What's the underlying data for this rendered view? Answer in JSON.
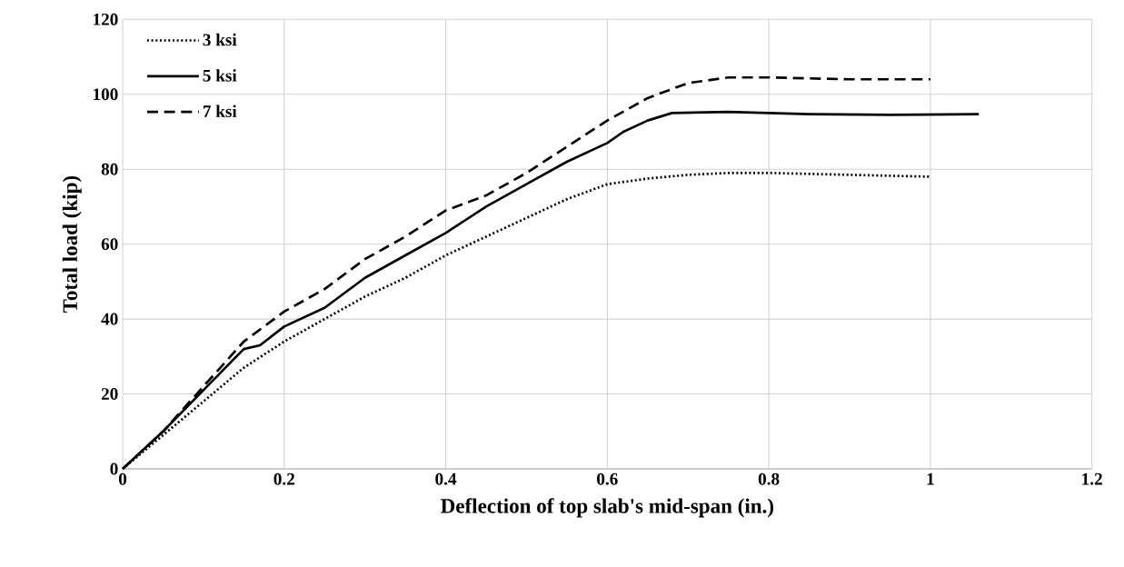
{
  "chart_data": {
    "type": "line",
    "xlabel": "Deflection of top slab's mid-span  (in.)",
    "ylabel": "Total load (kip)",
    "xlim": [
      0,
      1.2
    ],
    "ylim": [
      0,
      120
    ],
    "xticks": [
      0,
      0.2,
      0.4,
      0.6,
      0.8,
      1,
      1.2
    ],
    "yticks": [
      0,
      20,
      40,
      60,
      80,
      100,
      120
    ],
    "grid": true,
    "legend": "top left",
    "marker": "none",
    "series": [
      {
        "name": "3 ksi",
        "color": "#000000",
        "line_style": "dotted",
        "x": [
          0,
          0.05,
          0.1,
          0.15,
          0.2,
          0.25,
          0.3,
          0.35,
          0.4,
          0.45,
          0.5,
          0.55,
          0.6,
          0.65,
          0.7,
          0.75,
          0.8,
          0.9,
          1.0
        ],
        "values": [
          0,
          9,
          18,
          27,
          34,
          40,
          46,
          51,
          57,
          62,
          67,
          72,
          76,
          77.5,
          78.5,
          79,
          79,
          78.5,
          78
        ]
      },
      {
        "name": "5 ksi",
        "color": "#000000",
        "line_style": "solid",
        "x": [
          0,
          0.05,
          0.1,
          0.15,
          0.17,
          0.2,
          0.25,
          0.3,
          0.35,
          0.4,
          0.45,
          0.5,
          0.55,
          0.6,
          0.62,
          0.65,
          0.68,
          0.75,
          0.85,
          0.95,
          1.06
        ],
        "values": [
          0,
          10,
          21,
          32,
          33,
          38,
          43,
          51,
          57,
          63,
          70,
          76,
          82,
          87,
          90,
          93,
          95,
          95.3,
          94.7,
          94.5,
          94.7
        ]
      },
      {
        "name": "7 ksi",
        "color": "#000000",
        "line_style": "dashed",
        "x": [
          0,
          0.05,
          0.1,
          0.15,
          0.2,
          0.25,
          0.3,
          0.35,
          0.4,
          0.45,
          0.5,
          0.55,
          0.6,
          0.65,
          0.7,
          0.75,
          0.8,
          0.9,
          1.0
        ],
        "values": [
          0,
          10,
          22,
          34,
          42,
          48,
          56,
          62,
          69,
          73,
          79,
          86,
          93,
          99,
          103,
          104.5,
          104.5,
          104,
          104
        ]
      }
    ]
  }
}
